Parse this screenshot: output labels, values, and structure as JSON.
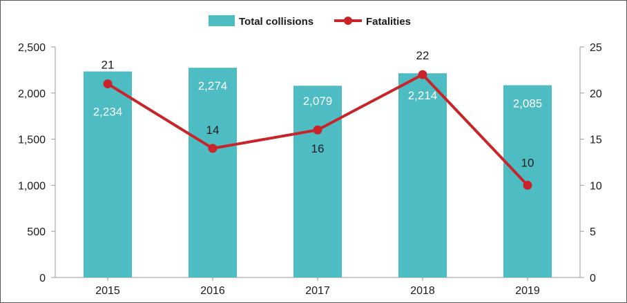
{
  "chart_data": {
    "type": "bar",
    "categories": [
      "2015",
      "2016",
      "2017",
      "2018",
      "2019"
    ],
    "series": [
      {
        "name": "Total collisions",
        "kind": "bar",
        "axis": "left",
        "values": [
          2234,
          2274,
          2079,
          2214,
          2085
        ],
        "labels": [
          "2,234",
          "2,274",
          "2,079",
          "2,214",
          "2,085"
        ],
        "color": "#4dbdc3"
      },
      {
        "name": "Fatalities",
        "kind": "line",
        "axis": "right",
        "values": [
          21,
          14,
          16,
          22,
          10
        ],
        "labels": [
          "21",
          "14",
          "16",
          "22",
          "10"
        ],
        "color": "#c8242a"
      }
    ],
    "left_axis": {
      "ylim": [
        0,
        2500
      ],
      "ticks": [
        0,
        500,
        1000,
        1500,
        2000,
        2500
      ],
      "tick_labels": [
        "0",
        "500",
        "1,000",
        "1,500",
        "2,000",
        "2,500"
      ]
    },
    "right_axis": {
      "ylim": [
        0,
        25
      ],
      "ticks": [
        0,
        5,
        10,
        15,
        20,
        25
      ],
      "tick_labels": [
        "0",
        "5",
        "10",
        "15",
        "20",
        "25"
      ]
    },
    "legend_position": "top-center",
    "grid": false
  }
}
